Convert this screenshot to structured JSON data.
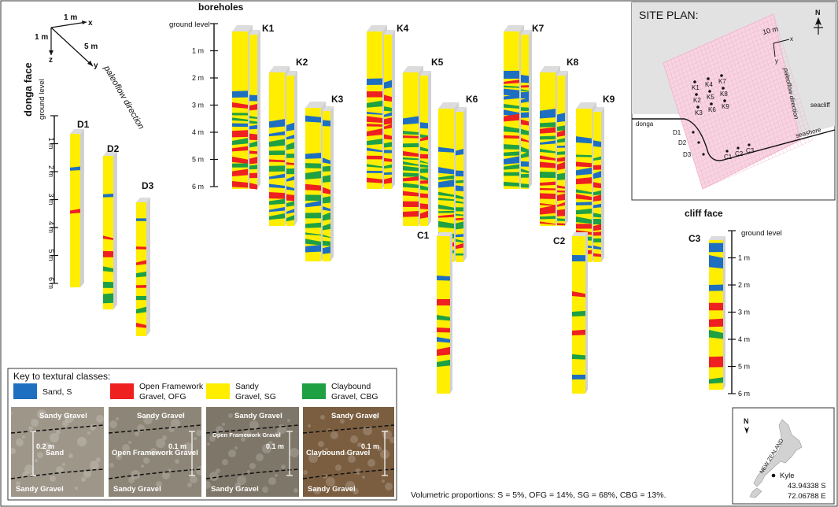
{
  "axes": {
    "x": "x",
    "y": "y",
    "z": "z",
    "x_scale": "1 m",
    "z_scale": "1 m",
    "y_scale": "5 m",
    "paleoflow": "paleoflow direction"
  },
  "donga": {
    "title": "donga face",
    "ground": "ground level",
    "ticks": [
      "1 m",
      "2 m",
      "3 m",
      "4 m",
      "5 m",
      "6 m"
    ],
    "labels": [
      "D1",
      "D2",
      "D3"
    ]
  },
  "boreholes": {
    "title": "boreholes",
    "ground": "ground level",
    "ticks": [
      "1 m",
      "2 m",
      "3 m",
      "4 m",
      "5 m",
      "6 m"
    ],
    "labels": [
      "K1",
      "K2",
      "K3",
      "K4",
      "K5",
      "K6",
      "K7",
      "K8",
      "K9",
      "C1",
      "C2"
    ]
  },
  "cliff": {
    "title": "cliff face",
    "ground": "ground level",
    "ticks": [
      "1 m",
      "2 m",
      "3 m",
      "4 m",
      "5 m",
      "6 m"
    ],
    "label": "C3"
  },
  "site_plan": {
    "title": "SITE PLAN:",
    "scale": "10 m",
    "x": "x",
    "y": "y",
    "north": "N",
    "paleoflow": "paleoflow direction",
    "seacliff": "seacliff",
    "seashore": "seashore",
    "donga": "donga",
    "k_labels": [
      "K1",
      "K4",
      "K7",
      "K2",
      "K5",
      "K8",
      "K3",
      "K6",
      "K9"
    ],
    "d_labels": [
      "D1",
      "D2",
      "D3"
    ],
    "c_labels": [
      "C1",
      "C2",
      "C3"
    ]
  },
  "key": {
    "title": "Key to textural classes:",
    "classes": [
      {
        "label": "Sand, S",
        "color": "#1f6fc0"
      },
      {
        "label": "Open Framework Gravel, OFG",
        "color": "#ee2020"
      },
      {
        "label": "Sandy Gravel, SG",
        "color": "#ffee00"
      },
      {
        "label": "Claybound Gravel, CBG",
        "color": "#1ea043"
      }
    ],
    "photos": [
      {
        "labels": [
          "Sandy Gravel",
          "Sand",
          "Sandy Gravel"
        ],
        "scale": "0.2 m"
      },
      {
        "labels": [
          "Sandy Gravel",
          "Open Framework Gravel",
          "Sandy Gravel"
        ],
        "scale": "0.1 m"
      },
      {
        "labels": [
          "Sandy Gravel",
          "Open Framework Gravel",
          "Sandy Gravel"
        ],
        "scale": "0.1 m"
      },
      {
        "labels": [
          "Sandy Gravel",
          "Claybound Gravel",
          "Sandy Gravel"
        ],
        "scale": "0.1 m"
      }
    ]
  },
  "proportions": "Volumetric proportions: S = 5%, OFG = 14%, SG = 68%, CBG = 13%.",
  "location": {
    "north": "N",
    "country": "NEW ZEALAND",
    "site": "Kyle",
    "lat": "43.94338 S",
    "lon": "72.06788 E"
  }
}
